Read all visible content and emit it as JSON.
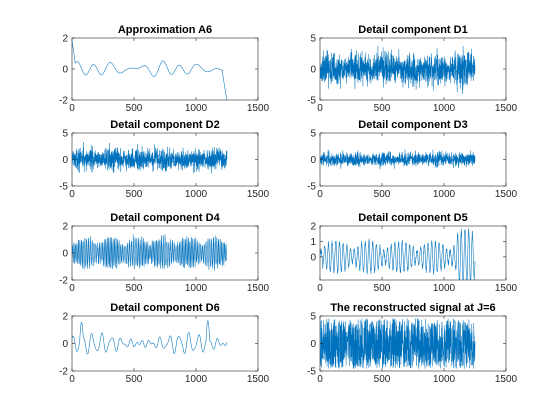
{
  "chart_data": [
    {
      "type": "line",
      "title": "Approximation A6",
      "n": 1250,
      "xlim": [
        0,
        1500
      ],
      "ylim": [
        -2,
        2
      ],
      "xticks": [
        0,
        500,
        1000,
        1500
      ],
      "yticks": [
        -2,
        0,
        2
      ],
      "color": "#0072BD",
      "grid": false,
      "shape": "smooth",
      "amplitude": 0.45,
      "seed": 6
    },
    {
      "type": "line",
      "title": "Detail component D1",
      "n": 1250,
      "xlim": [
        0,
        1500
      ],
      "ylim": [
        -5,
        5
      ],
      "xticks": [
        0,
        500,
        1000,
        1500
      ],
      "yticks": [
        -5,
        0,
        5
      ],
      "color": "#0072BD",
      "grid": false,
      "shape": "noise",
      "amplitude": 2.4,
      "seed": 11
    },
    {
      "type": "line",
      "title": "Detail component D2",
      "n": 1250,
      "xlim": [
        0,
        1500
      ],
      "ylim": [
        -5,
        5
      ],
      "xticks": [
        0,
        500,
        1000,
        1500
      ],
      "yticks": [
        -5,
        0,
        5
      ],
      "color": "#0072BD",
      "grid": false,
      "shape": "noise",
      "amplitude": 1.9,
      "seed": 22
    },
    {
      "type": "line",
      "title": "Detail component D3",
      "n": 1250,
      "xlim": [
        0,
        1500
      ],
      "ylim": [
        -5,
        5
      ],
      "xticks": [
        0,
        500,
        1000,
        1500
      ],
      "yticks": [
        -5,
        0,
        5
      ],
      "color": "#0072BD",
      "grid": false,
      "shape": "noise",
      "amplitude": 1.2,
      "seed": 33
    },
    {
      "type": "line",
      "title": "Detail component D4",
      "n": 1250,
      "xlim": [
        0,
        1500
      ],
      "ylim": [
        -2,
        2
      ],
      "xticks": [
        0,
        500,
        1000,
        1500
      ],
      "yticks": [
        -2,
        0,
        2
      ],
      "color": "#0072BD",
      "grid": false,
      "shape": "osc",
      "amplitude": 0.9,
      "seed": 44
    },
    {
      "type": "line",
      "title": "Detail component D5",
      "n": 1250,
      "xlim": [
        0,
        1500
      ],
      "ylim": [
        -1.5,
        2
      ],
      "xticks": [
        0,
        500,
        1000,
        1500
      ],
      "yticks": [
        0,
        1,
        2
      ],
      "color": "#0072BD",
      "grid": false,
      "shape": "wave",
      "amplitude": 0.7,
      "seed": 55
    },
    {
      "type": "line",
      "title": "Detail component D6",
      "n": 1250,
      "xlim": [
        0,
        1500
      ],
      "ylim": [
        -2,
        2
      ],
      "xticks": [
        0,
        500,
        1000,
        1500
      ],
      "yticks": [
        -2,
        0,
        2
      ],
      "color": "#0072BD",
      "grid": false,
      "shape": "smooth6",
      "amplitude": 0.55,
      "seed": 66
    },
    {
      "type": "line",
      "title": "The reconstructed signal at J=6",
      "n": 1250,
      "xlim": [
        0,
        1500
      ],
      "ylim": [
        -5,
        5
      ],
      "xticks": [
        0,
        500,
        1000,
        1500
      ],
      "yticks": [
        -5,
        0,
        5
      ],
      "color": "#0072BD",
      "grid": false,
      "shape": "dense",
      "amplitude": 4.6,
      "seed": 77
    }
  ]
}
